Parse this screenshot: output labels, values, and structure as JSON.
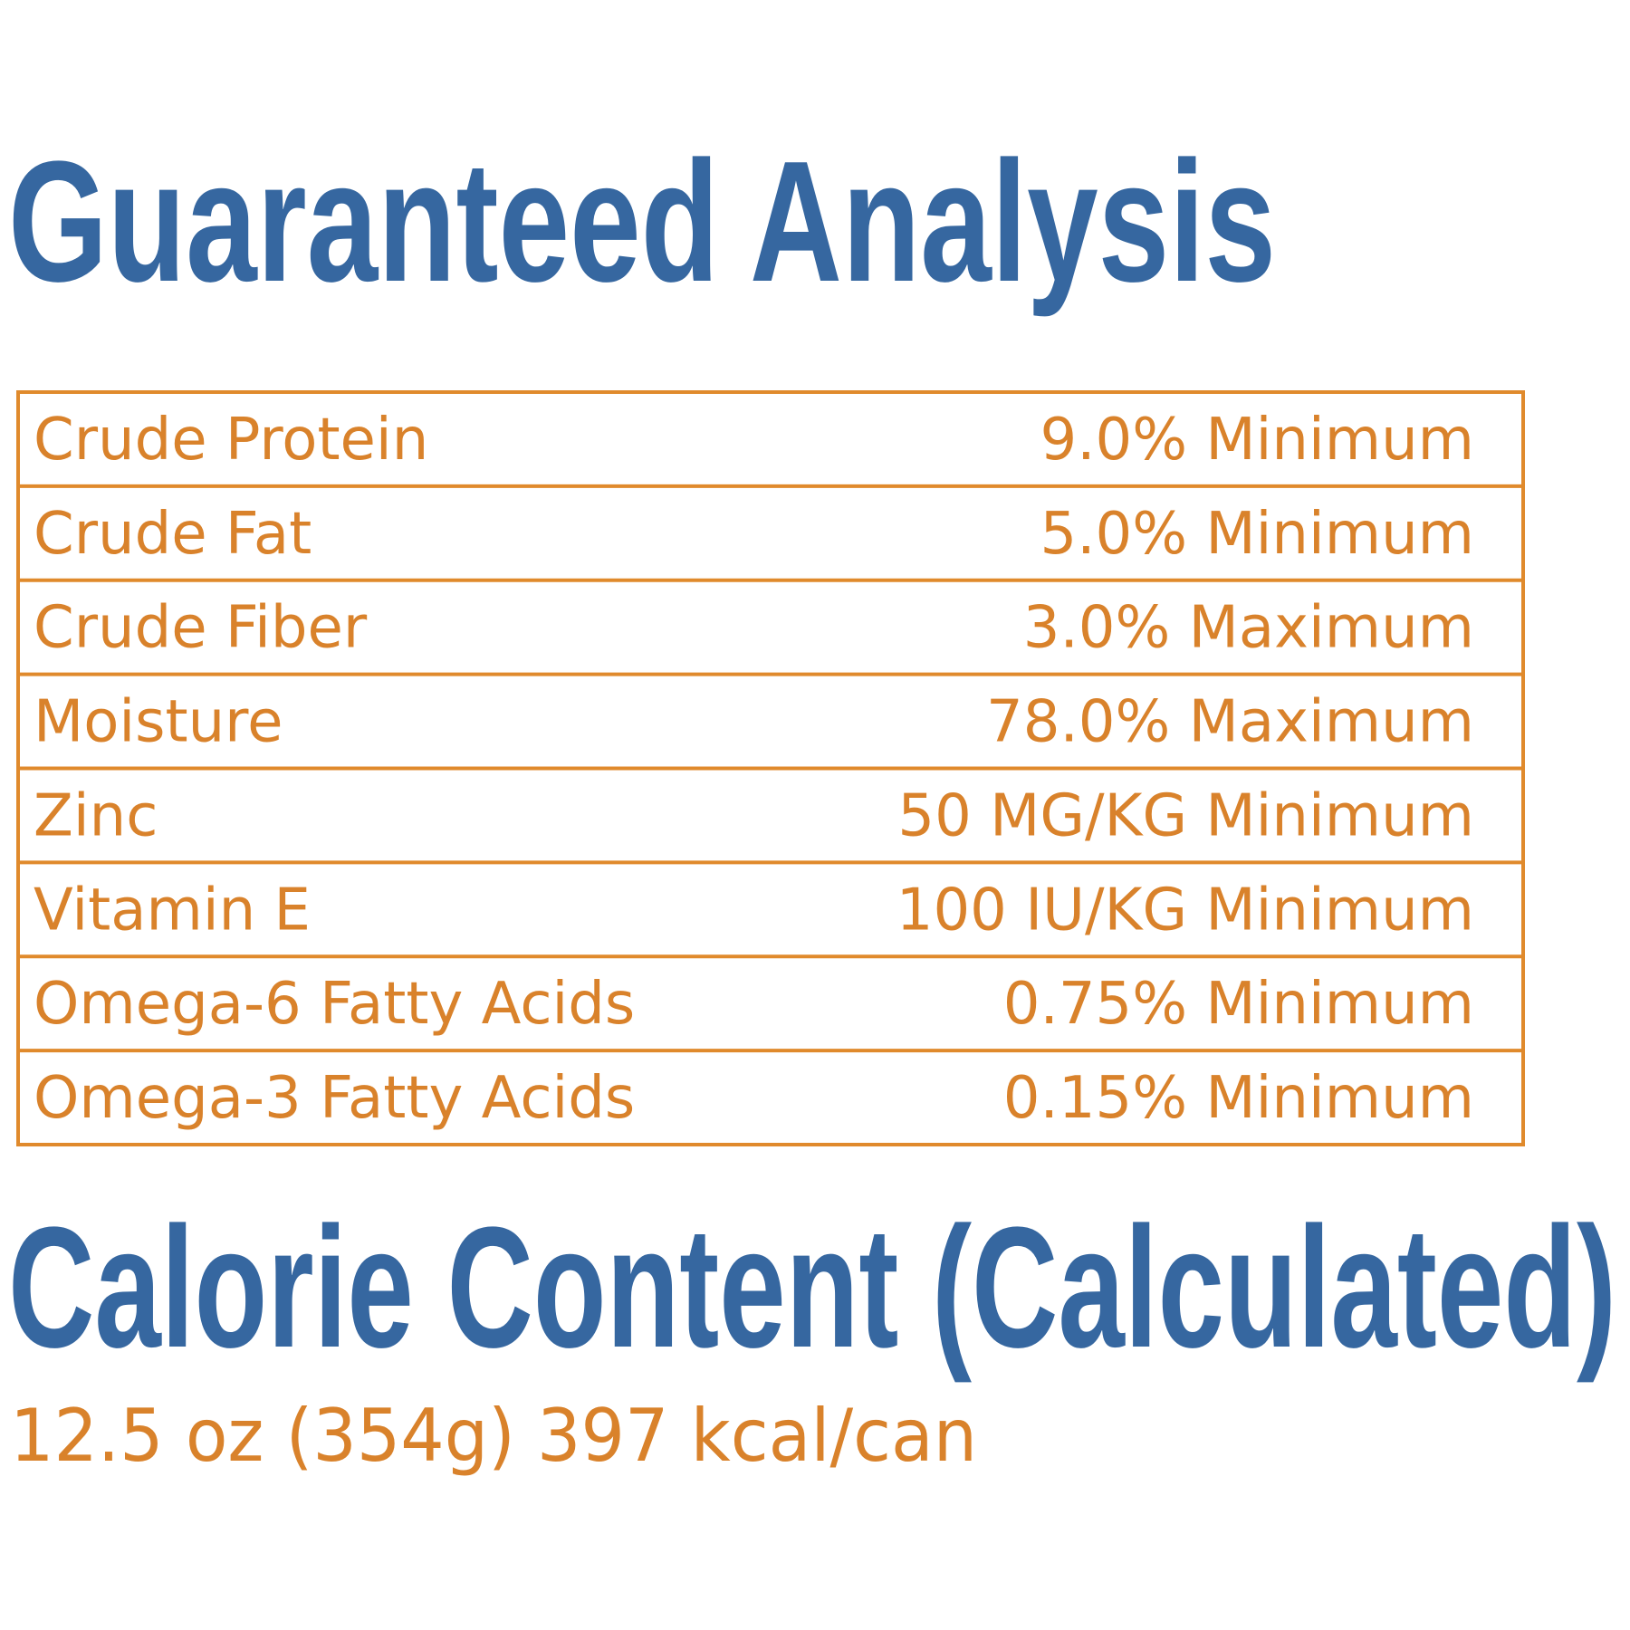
{
  "header": {
    "title": "Guaranteed Analysis"
  },
  "table": {
    "rows": [
      [
        "Crude Protein",
        "9.0% Minimum"
      ],
      [
        "Crude Fat",
        "5.0% Minimum"
      ],
      [
        "Crude Fiber",
        "3.0% Maximum"
      ],
      [
        "Moisture",
        "78.0% Maximum"
      ],
      [
        "Zinc",
        "50 MG/KG Minimum"
      ],
      [
        "Vitamin E",
        "100 IU/KG Minimum"
      ],
      [
        "Omega-6 Fatty Acids",
        "0.75% Minimum"
      ],
      [
        "Omega-3 Fatty Acids",
        "0.15% Minimum"
      ]
    ]
  },
  "calorie": {
    "title": "Calorie Content (Calculated)",
    "text": "12.5 oz (354g) 397 kcal/can"
  }
}
